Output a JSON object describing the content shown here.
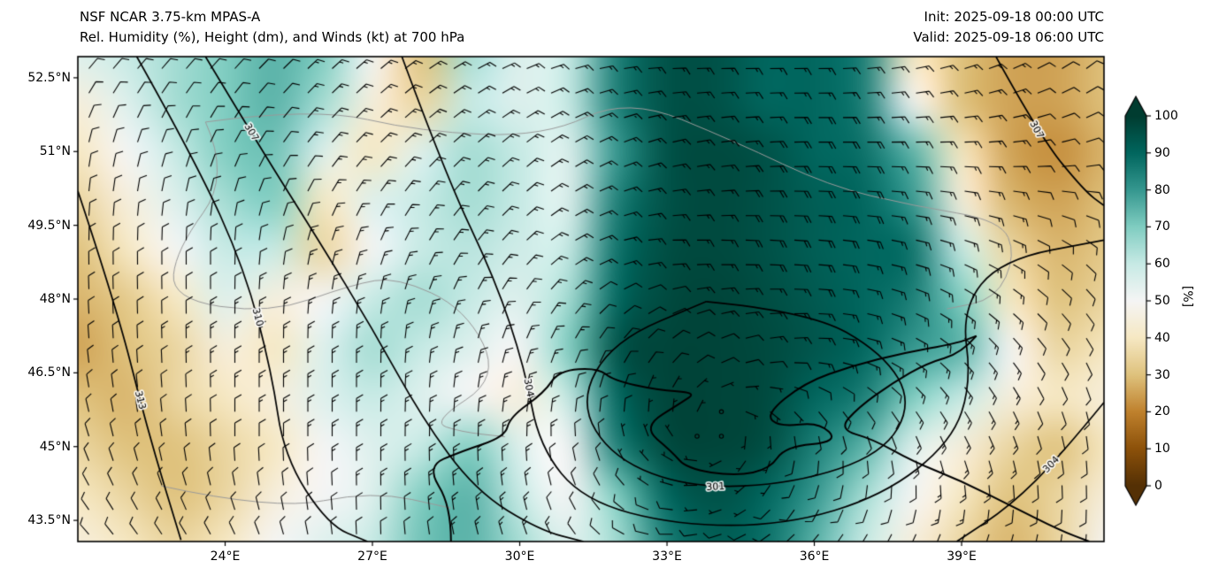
{
  "header": {
    "model": "NSF NCAR 3.75-km MPAS-A",
    "field": "Rel. Humidity (%), Height (dm), and Winds (kt) at 700 hPa",
    "init": "Init: 2025-09-18 00:00 UTC",
    "valid": "Valid: 2025-09-18 06:00 UTC"
  },
  "axes": {
    "lat_ticks": [
      {
        "label": "52.5°N",
        "value": 52.5
      },
      {
        "label": "51°N",
        "value": 51
      },
      {
        "label": "49.5°N",
        "value": 49.5
      },
      {
        "label": "48°N",
        "value": 48
      },
      {
        "label": "46.5°N",
        "value": 46.5
      },
      {
        "label": "45°N",
        "value": 45
      },
      {
        "label": "43.5°N",
        "value": 43.5
      }
    ],
    "lon_ticks": [
      {
        "label": "24°E",
        "value": 24
      },
      {
        "label": "27°E",
        "value": 27
      },
      {
        "label": "30°E",
        "value": 30
      },
      {
        "label": "33°E",
        "value": 33
      },
      {
        "label": "36°E",
        "value": 36
      },
      {
        "label": "39°E",
        "value": 39
      }
    ]
  },
  "colorbar": {
    "label": "[%]",
    "ticks": [
      0,
      10,
      20,
      30,
      40,
      50,
      60,
      70,
      80,
      90,
      100
    ],
    "stops": [
      {
        "v": 0,
        "c": "#543005"
      },
      {
        "v": 10,
        "c": "#8c510a"
      },
      {
        "v": 20,
        "c": "#bf812d"
      },
      {
        "v": 30,
        "c": "#dfc27d"
      },
      {
        "v": 40,
        "c": "#f6e8c3"
      },
      {
        "v": 50,
        "c": "#f5f5f5"
      },
      {
        "v": 60,
        "c": "#c7eae5"
      },
      {
        "v": 70,
        "c": "#80cdc1"
      },
      {
        "v": 80,
        "c": "#35978f"
      },
      {
        "v": 90,
        "c": "#01665e"
      },
      {
        "v": 100,
        "c": "#003c30"
      }
    ]
  },
  "chart_data": {
    "type": "heatmap",
    "title": "Rel. Humidity (%), Height (dm), and Winds (kt) at 700 hPa",
    "units": "%",
    "lon_range": [
      21.0,
      41.9
    ],
    "lat_range": [
      43.07,
      52.93
    ],
    "humidity_grid": {
      "lons": [
        21,
        22,
        23,
        24,
        25,
        26,
        27,
        28,
        29,
        30,
        31,
        32,
        33,
        34,
        35,
        36,
        37,
        38,
        39,
        40,
        41,
        42
      ],
      "lats": [
        53,
        52,
        51,
        50,
        49,
        48,
        47,
        46,
        45,
        44,
        43
      ],
      "values": [
        [
          55,
          60,
          65,
          70,
          75,
          70,
          50,
          30,
          65,
          55,
          60,
          85,
          95,
          95,
          90,
          90,
          85,
          40,
          30,
          25,
          25,
          30
        ],
        [
          45,
          55,
          65,
          70,
          75,
          65,
          45,
          35,
          60,
          55,
          60,
          85,
          95,
          95,
          90,
          90,
          85,
          50,
          30,
          25,
          25,
          30
        ],
        [
          40,
          50,
          60,
          70,
          72,
          55,
          40,
          55,
          65,
          60,
          55,
          80,
          95,
          97,
          95,
          90,
          88,
          75,
          40,
          25,
          22,
          28
        ],
        [
          35,
          45,
          55,
          65,
          70,
          40,
          55,
          60,
          65,
          60,
          55,
          85,
          95,
          97,
          95,
          92,
          90,
          80,
          45,
          28,
          25,
          30
        ],
        [
          30,
          40,
          50,
          60,
          60,
          35,
          50,
          60,
          62,
          58,
          60,
          88,
          96,
          97,
          95,
          92,
          90,
          88,
          60,
          35,
          28,
          32
        ],
        [
          28,
          32,
          40,
          55,
          45,
          50,
          60,
          65,
          60,
          55,
          65,
          90,
          97,
          98,
          96,
          93,
          90,
          85,
          70,
          40,
          30,
          35
        ],
        [
          25,
          30,
          35,
          45,
          40,
          55,
          65,
          60,
          55,
          50,
          70,
          95,
          98,
          98,
          97,
          94,
          90,
          80,
          75,
          50,
          35,
          40
        ],
        [
          30,
          28,
          35,
          40,
          45,
          55,
          60,
          55,
          50,
          45,
          60,
          90,
          98,
          98,
          97,
          90,
          85,
          70,
          60,
          45,
          40,
          45
        ],
        [
          35,
          30,
          30,
          35,
          40,
          50,
          55,
          60,
          70,
          55,
          50,
          85,
          97,
          98,
          96,
          85,
          75,
          55,
          45,
          35,
          30,
          40
        ],
        [
          40,
          35,
          30,
          35,
          45,
          50,
          55,
          70,
          75,
          60,
          50,
          70,
          90,
          95,
          90,
          80,
          65,
          50,
          40,
          30,
          35,
          45
        ],
        [
          45,
          40,
          35,
          40,
          50,
          55,
          60,
          72,
          75,
          65,
          55,
          65,
          85,
          92,
          88,
          75,
          60,
          45,
          35,
          28,
          35,
          50
        ]
      ]
    },
    "height_contours": {
      "units": "dm",
      "levels": [
        301,
        304,
        307,
        310,
        313
      ],
      "lines": [
        {
          "level": 313,
          "label_t": 0.6,
          "points": [
            [
              21.0,
              50.2
            ],
            [
              21.8,
              47.8
            ],
            [
              22.4,
              45.4
            ],
            [
              23.1,
              43.1
            ]
          ]
        },
        {
          "level": 310,
          "label_t": 0.52,
          "points": [
            [
              22.2,
              52.93
            ],
            [
              23.4,
              50.8
            ],
            [
              24.4,
              48.6
            ],
            [
              24.95,
              46.5
            ],
            [
              25.2,
              44.8
            ],
            [
              26.1,
              43.4
            ],
            [
              26.9,
              43.07
            ]
          ]
        },
        {
          "level": 307,
          "label_t": 0.14,
          "points": [
            [
              23.6,
              52.93
            ],
            [
              24.7,
              51.1
            ],
            [
              25.9,
              49.2
            ],
            [
              27.0,
              47.4
            ],
            [
              28.0,
              45.6
            ],
            [
              29.1,
              44.1
            ],
            [
              30.4,
              43.3
            ],
            [
              31.3,
              43.07
            ]
          ]
        },
        {
          "level": 304,
          "label_t": 0.3,
          "points": [
            [
              27.6,
              52.93
            ],
            [
              28.5,
              50.5
            ],
            [
              29.5,
              48.4
            ],
            [
              30.1,
              46.6
            ],
            [
              30.4,
              45.0
            ],
            [
              31.3,
              43.9
            ],
            [
              33.2,
              43.4
            ],
            [
              35.4,
              43.4
            ],
            [
              37.4,
              44.0
            ],
            [
              38.8,
              45.1
            ],
            [
              39.2,
              46.3
            ],
            [
              39.0,
              47.8
            ],
            [
              39.8,
              48.8
            ],
            [
              41.9,
              49.2
            ]
          ]
        },
        {
          "level": 301,
          "label_t": 0.58,
          "points": [
            [
              33.8,
              47.95
            ],
            [
              35.9,
              47.75
            ],
            [
              37.4,
              46.9
            ],
            [
              38.0,
              45.9
            ],
            [
              37.4,
              44.85
            ],
            [
              35.6,
              44.25
            ],
            [
              33.5,
              44.15
            ],
            [
              31.9,
              44.75
            ],
            [
              31.2,
              45.9
            ],
            [
              31.9,
              47.15
            ],
            [
              33.8,
              47.95
            ]
          ]
        },
        {
          "level": 307,
          "label_t": 0.45,
          "points": [
            [
              39.7,
              52.93
            ],
            [
              40.6,
              51.3
            ],
            [
              41.5,
              50.2
            ],
            [
              41.9,
              49.9
            ]
          ]
        },
        {
          "level": 304,
          "label_t": 0.4,
          "points": [
            [
              41.9,
              45.9
            ],
            [
              41.0,
              44.8
            ],
            [
              40.0,
              43.8
            ],
            [
              38.9,
              43.07
            ]
          ]
        }
      ]
    },
    "wind_barbs": {
      "units": "kt",
      "grid_lons": [
        21,
        24,
        27,
        30,
        33,
        36,
        39,
        42
      ],
      "grid_lats": [
        53,
        51,
        49,
        47,
        45,
        43
      ],
      "dir_from_deg": [
        [
          45,
          45,
          50,
          70,
          90,
          90,
          70,
          45
        ],
        [
          10,
          25,
          45,
          50,
          75,
          90,
          90,
          70
        ],
        [
          0,
          0,
          20,
          45,
          90,
          95,
          110,
          135
        ],
        [
          355,
          0,
          0,
          20,
          45,
          90,
          135,
          155
        ],
        [
          340,
          0,
          0,
          0,
          315,
          180,
          155,
          180
        ],
        [
          315,
          330,
          0,
          340,
          270,
          225,
          205,
          180
        ]
      ],
      "speed_kt": [
        [
          10,
          10,
          15,
          15,
          15,
          15,
          15,
          10
        ],
        [
          10,
          10,
          15,
          15,
          15,
          20,
          15,
          10
        ],
        [
          10,
          10,
          15,
          15,
          15,
          20,
          15,
          10
        ],
        [
          10,
          15,
          15,
          15,
          10,
          15,
          15,
          10
        ],
        [
          10,
          10,
          15,
          15,
          5,
          10,
          15,
          10
        ],
        [
          10,
          10,
          10,
          15,
          10,
          10,
          15,
          10
        ]
      ]
    },
    "map_overlays": {
      "coastlines": [
        [
          [
            28.6,
            43.07
          ],
          [
            28.6,
            43.8
          ],
          [
            28.1,
            44.6
          ],
          [
            28.8,
            44.9
          ],
          [
            29.7,
            45.2
          ],
          [
            29.8,
            45.6
          ],
          [
            30.5,
            46.1
          ],
          [
            30.8,
            46.55
          ],
          [
            31.6,
            46.6
          ],
          [
            31.9,
            46.35
          ],
          [
            32.8,
            46.15
          ],
          [
            33.6,
            46.1
          ],
          [
            33.3,
            45.9
          ],
          [
            32.5,
            45.4
          ],
          [
            33.1,
            44.9
          ],
          [
            33.4,
            44.55
          ],
          [
            34.4,
            44.4
          ],
          [
            35.1,
            44.55
          ],
          [
            35.4,
            45.0
          ],
          [
            36.5,
            45.1
          ],
          [
            36.1,
            45.5
          ],
          [
            35.3,
            45.4
          ],
          [
            35.0,
            45.65
          ],
          [
            35.8,
            46.3
          ],
          [
            36.8,
            46.65
          ],
          [
            37.8,
            46.9
          ],
          [
            38.9,
            47.1
          ],
          [
            39.3,
            47.25
          ]
        ],
        [
          [
            39.3,
            47.25
          ],
          [
            39.0,
            46.9
          ],
          [
            38.3,
            46.7
          ],
          [
            37.6,
            46.3
          ],
          [
            36.9,
            45.8
          ],
          [
            36.5,
            45.35
          ],
          [
            37.2,
            45.15
          ],
          [
            38.0,
            44.7
          ],
          [
            39.0,
            44.3
          ],
          [
            40.0,
            43.8
          ],
          [
            41.0,
            43.3
          ],
          [
            41.6,
            43.07
          ]
        ]
      ],
      "borders": [
        [
          [
            23.6,
            51.6
          ],
          [
            25.8,
            51.9
          ],
          [
            28.0,
            51.4
          ],
          [
            30.5,
            51.3
          ],
          [
            32.2,
            52.1
          ],
          [
            34.4,
            51.2
          ],
          [
            36.3,
            50.3
          ],
          [
            38.0,
            49.9
          ],
          [
            39.8,
            49.6
          ],
          [
            40.1,
            48.9
          ],
          [
            39.7,
            48.0
          ],
          [
            38.7,
            47.8
          ]
        ],
        [
          [
            23.6,
            51.6
          ],
          [
            24.1,
            50.5
          ],
          [
            23.0,
            49.0
          ],
          [
            22.9,
            48.0
          ],
          [
            24.9,
            47.7
          ],
          [
            26.6,
            48.3
          ],
          [
            27.5,
            48.45
          ],
          [
            28.9,
            47.8
          ],
          [
            29.6,
            46.4
          ],
          [
            28.2,
            45.5
          ],
          [
            28.8,
            45.3
          ],
          [
            29.7,
            45.2
          ]
        ],
        [
          [
            22.7,
            44.2
          ],
          [
            25.0,
            43.7
          ],
          [
            27.0,
            44.1
          ],
          [
            28.6,
            43.75
          ]
        ]
      ]
    }
  }
}
